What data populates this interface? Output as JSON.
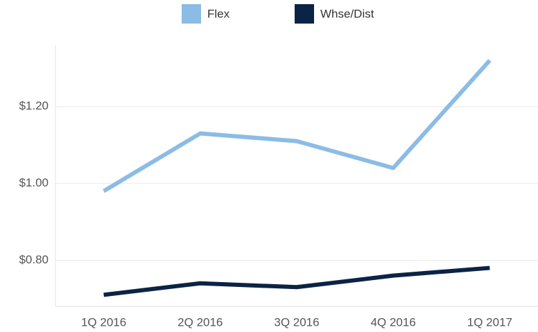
{
  "chart_data": {
    "type": "line",
    "categories": [
      "1Q 2016",
      "2Q 2016",
      "3Q 2016",
      "4Q 2016",
      "1Q 2017"
    ],
    "series": [
      {
        "name": "Flex",
        "color": "#8bbce6",
        "values": [
          0.98,
          1.13,
          1.11,
          1.04,
          1.32
        ]
      },
      {
        "name": "Whse/Dist",
        "color": "#0b2345",
        "values": [
          0.71,
          0.74,
          0.73,
          0.76,
          0.78
        ]
      }
    ],
    "ylim": [
      0.68,
      1.36
    ],
    "yticks": [
      {
        "value": 0.8,
        "label": "$0.80"
      },
      {
        "value": 1.0,
        "label": "$1.00"
      },
      {
        "value": 1.2,
        "label": "$1.20"
      }
    ],
    "grid": true,
    "legend": "top"
  }
}
